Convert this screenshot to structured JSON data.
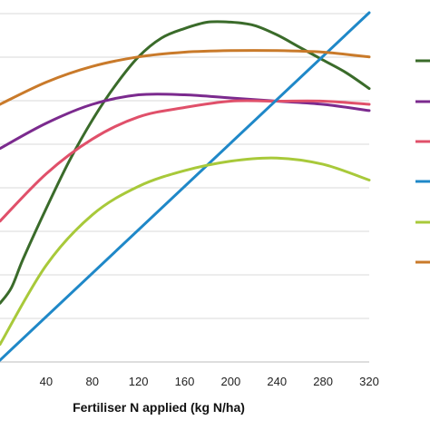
{
  "chart_data": {
    "type": "line",
    "title": "",
    "xlabel": "Fertiliser N applied (kg N/ha)",
    "ylabel": "",
    "xlim": [
      0,
      320
    ],
    "x_ticks": [
      40,
      80,
      120,
      160,
      200,
      240,
      280,
      320
    ],
    "grid": "horizontal",
    "legend": "right",
    "series": [
      {
        "color": "#3a6b2a",
        "x": [
          0,
          10,
          20,
          40,
          60,
          80,
          100,
          120,
          140,
          160,
          180,
          200,
          220,
          240,
          260,
          280,
          300,
          320
        ],
        "y": [
          -1.2,
          -0.7,
          0.2,
          1.8,
          3.3,
          4.6,
          5.7,
          6.6,
          7.2,
          7.5,
          7.7,
          7.7,
          7.6,
          7.3,
          6.9,
          6.5,
          6.1,
          5.6
        ]
      },
      {
        "color": "#7b2a8e",
        "x": [
          0,
          40,
          80,
          120,
          160,
          200,
          240,
          280,
          320
        ],
        "y": [
          3.7,
          4.5,
          5.1,
          5.4,
          5.4,
          5.3,
          5.2,
          5.1,
          4.9
        ]
      },
      {
        "color": "#e0506a",
        "x": [
          0,
          40,
          80,
          120,
          160,
          200,
          240,
          280,
          320
        ],
        "y": [
          1.4,
          2.9,
          4.0,
          4.7,
          5.0,
          5.2,
          5.2,
          5.2,
          5.1
        ]
      },
      {
        "color": "#1f88c8",
        "x": [
          0,
          320
        ],
        "y": [
          -3.0,
          8.0
        ]
      },
      {
        "color": "#a8c93a",
        "x": [
          0,
          40,
          80,
          120,
          160,
          200,
          240,
          280,
          320
        ],
        "y": [
          -2.5,
          0.0,
          1.6,
          2.5,
          3.0,
          3.3,
          3.4,
          3.2,
          2.7
        ]
      },
      {
        "color": "#c97a2a",
        "x": [
          0,
          40,
          80,
          120,
          160,
          200,
          240,
          280,
          320
        ],
        "y": [
          5.1,
          5.8,
          6.3,
          6.6,
          6.75,
          6.8,
          6.8,
          6.75,
          6.6
        ]
      }
    ]
  }
}
